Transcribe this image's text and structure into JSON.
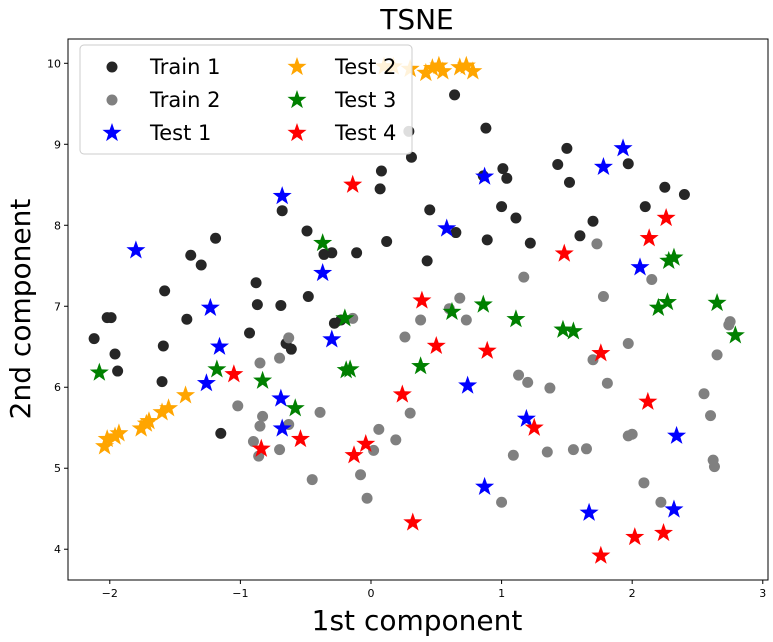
{
  "chart_data": {
    "type": "scatter",
    "title": "TSNE",
    "xlabel": "1st component",
    "ylabel": "2nd component",
    "xlim": [
      -2.32,
      3.04
    ],
    "ylim": [
      3.62,
      10.3
    ],
    "xticks": [
      -2,
      -1,
      0,
      1,
      2,
      3
    ],
    "xtick_labels": [
      "−2",
      "−1",
      "0",
      "1",
      "2",
      "3"
    ],
    "yticks": [
      4,
      5,
      6,
      7,
      8,
      9,
      10
    ],
    "ytick_labels": [
      "4",
      "5",
      "6",
      "7",
      "8",
      "9",
      "10"
    ],
    "grid": false,
    "legend_position": "top-left",
    "series": [
      {
        "name": "Train 1",
        "marker": "circle",
        "color": "#262626",
        "points": [
          [
            -2.12,
            6.6
          ],
          [
            -2.02,
            6.86
          ],
          [
            -1.99,
            6.86
          ],
          [
            -1.96,
            6.41
          ],
          [
            -1.94,
            6.2
          ],
          [
            -1.58,
            7.19
          ],
          [
            -1.59,
            6.51
          ],
          [
            -1.6,
            6.07
          ],
          [
            -1.38,
            7.63
          ],
          [
            -1.3,
            7.51
          ],
          [
            -1.41,
            6.84
          ],
          [
            -1.19,
            7.84
          ],
          [
            -1.15,
            5.43
          ],
          [
            -0.93,
            6.67
          ],
          [
            -0.88,
            7.29
          ],
          [
            -0.87,
            7.02
          ],
          [
            -0.69,
            7.01
          ],
          [
            -0.68,
            8.18
          ],
          [
            -0.65,
            6.54
          ],
          [
            -0.61,
            6.47
          ],
          [
            -0.49,
            7.93
          ],
          [
            -0.48,
            7.12
          ],
          [
            -0.36,
            7.64
          ],
          [
            -0.3,
            7.66
          ],
          [
            -0.28,
            6.79
          ],
          [
            -0.23,
            6.83
          ],
          [
            -0.11,
            7.66
          ],
          [
            0.07,
            8.45
          ],
          [
            0.08,
            8.67
          ],
          [
            0.12,
            7.8
          ],
          [
            0.29,
            9.16
          ],
          [
            0.31,
            8.84
          ],
          [
            0.43,
            7.56
          ],
          [
            0.45,
            8.19
          ],
          [
            0.64,
            9.61
          ],
          [
            0.65,
            7.91
          ],
          [
            0.86,
            8.61
          ],
          [
            0.88,
            9.2
          ],
          [
            0.89,
            7.82
          ],
          [
            1.0,
            8.23
          ],
          [
            1.01,
            8.7
          ],
          [
            1.04,
            8.58
          ],
          [
            1.11,
            8.09
          ],
          [
            1.22,
            7.78
          ],
          [
            1.43,
            8.75
          ],
          [
            1.5,
            8.95
          ],
          [
            1.52,
            8.53
          ],
          [
            1.6,
            7.87
          ],
          [
            1.7,
            8.05
          ],
          [
            1.97,
            8.76
          ],
          [
            2.1,
            8.23
          ],
          [
            2.25,
            8.47
          ],
          [
            2.4,
            8.38
          ]
        ]
      },
      {
        "name": "Train 2",
        "marker": "circle",
        "color": "#808080",
        "points": [
          [
            -1.02,
            5.77
          ],
          [
            -0.9,
            5.33
          ],
          [
            -0.86,
            5.15
          ],
          [
            -0.85,
            6.3
          ],
          [
            -0.85,
            5.52
          ],
          [
            -0.83,
            5.64
          ],
          [
            -0.7,
            6.36
          ],
          [
            -0.7,
            5.23
          ],
          [
            -0.63,
            5.54
          ],
          [
            -0.63,
            6.61
          ],
          [
            -0.45,
            4.86
          ],
          [
            -0.39,
            5.69
          ],
          [
            -0.14,
            6.85
          ],
          [
            -0.08,
            4.92
          ],
          [
            -0.03,
            4.63
          ],
          [
            0.02,
            5.22
          ],
          [
            0.06,
            5.48
          ],
          [
            0.19,
            5.35
          ],
          [
            0.26,
            6.62
          ],
          [
            0.3,
            5.68
          ],
          [
            0.38,
            6.83
          ],
          [
            0.6,
            6.97
          ],
          [
            0.68,
            7.1
          ],
          [
            0.73,
            6.83
          ],
          [
            1.0,
            4.58
          ],
          [
            1.09,
            5.16
          ],
          [
            1.13,
            6.15
          ],
          [
            1.17,
            7.36
          ],
          [
            1.2,
            6.06
          ],
          [
            1.35,
            5.2
          ],
          [
            1.37,
            5.99
          ],
          [
            1.55,
            5.23
          ],
          [
            1.65,
            5.24
          ],
          [
            1.7,
            6.34
          ],
          [
            1.73,
            7.77
          ],
          [
            1.78,
            7.12
          ],
          [
            1.81,
            6.05
          ],
          [
            1.97,
            5.4
          ],
          [
            1.97,
            6.54
          ],
          [
            2.0,
            5.42
          ],
          [
            2.09,
            4.82
          ],
          [
            2.15,
            7.33
          ],
          [
            2.22,
            4.58
          ],
          [
            2.55,
            5.92
          ],
          [
            2.6,
            5.65
          ],
          [
            2.62,
            5.1
          ],
          [
            2.63,
            5.02
          ],
          [
            2.65,
            6.4
          ],
          [
            2.74,
            6.77
          ],
          [
            2.75,
            6.81
          ]
        ]
      },
      {
        "name": "Test 1",
        "marker": "star",
        "color": "#0000ff",
        "points": [
          [
            -1.8,
            7.69
          ],
          [
            -1.26,
            6.05
          ],
          [
            -1.23,
            6.98
          ],
          [
            -1.16,
            6.5
          ],
          [
            -0.68,
            8.36
          ],
          [
            -0.69,
            5.86
          ],
          [
            -0.68,
            5.49
          ],
          [
            -0.37,
            7.41
          ],
          [
            -0.3,
            6.59
          ],
          [
            0.58,
            7.96
          ],
          [
            0.74,
            6.02
          ],
          [
            0.87,
            8.6
          ],
          [
            0.87,
            4.77
          ],
          [
            1.19,
            5.61
          ],
          [
            1.67,
            4.45
          ],
          [
            1.78,
            8.72
          ],
          [
            1.93,
            8.95
          ],
          [
            2.06,
            7.48
          ],
          [
            2.32,
            4.49
          ],
          [
            2.34,
            5.4
          ]
        ]
      },
      {
        "name": "Test 2",
        "marker": "star",
        "color": "#ffa500",
        "points": [
          [
            -2.04,
            5.27
          ],
          [
            -2.02,
            5.36
          ],
          [
            -1.96,
            5.39
          ],
          [
            -1.93,
            5.43
          ],
          [
            -1.76,
            5.49
          ],
          [
            -1.72,
            5.55
          ],
          [
            -1.7,
            5.58
          ],
          [
            -1.6,
            5.69
          ],
          [
            -1.55,
            5.74
          ],
          [
            -1.42,
            5.9
          ],
          [
            0.1,
            9.96
          ],
          [
            0.17,
            9.96
          ],
          [
            0.3,
            9.93
          ],
          [
            0.42,
            9.88
          ],
          [
            0.47,
            9.94
          ],
          [
            0.52,
            9.97
          ],
          [
            0.55,
            9.9
          ],
          [
            0.68,
            9.95
          ],
          [
            0.73,
            9.97
          ],
          [
            0.78,
            9.9
          ]
        ]
      },
      {
        "name": "Test 3",
        "marker": "star",
        "color": "#008000",
        "points": [
          [
            -2.08,
            6.18
          ],
          [
            -1.18,
            6.22
          ],
          [
            -0.83,
            6.08
          ],
          [
            -0.58,
            5.74
          ],
          [
            -0.37,
            7.78
          ],
          [
            -0.2,
            6.85
          ],
          [
            -0.19,
            6.21
          ],
          [
            -0.16,
            6.22
          ],
          [
            0.38,
            6.26
          ],
          [
            0.62,
            6.93
          ],
          [
            0.86,
            7.02
          ],
          [
            1.11,
            6.84
          ],
          [
            1.47,
            6.71
          ],
          [
            1.55,
            6.69
          ],
          [
            2.2,
            6.98
          ],
          [
            2.27,
            7.05
          ],
          [
            2.28,
            7.56
          ],
          [
            2.32,
            7.6
          ],
          [
            2.65,
            7.04
          ],
          [
            2.79,
            6.64
          ]
        ]
      },
      {
        "name": "Test 4",
        "marker": "star",
        "color": "#ff0000",
        "points": [
          [
            -1.05,
            6.16
          ],
          [
            -0.84,
            5.24
          ],
          [
            -0.54,
            5.36
          ],
          [
            -0.14,
            8.5
          ],
          [
            -0.13,
            5.16
          ],
          [
            -0.04,
            5.3
          ],
          [
            0.24,
            5.91
          ],
          [
            0.32,
            4.33
          ],
          [
            0.39,
            7.07
          ],
          [
            0.5,
            6.51
          ],
          [
            0.89,
            6.45
          ],
          [
            1.25,
            5.5
          ],
          [
            1.48,
            7.65
          ],
          [
            1.76,
            6.42
          ],
          [
            1.76,
            3.92
          ],
          [
            2.02,
            4.15
          ],
          [
            2.12,
            5.82
          ],
          [
            2.13,
            7.84
          ],
          [
            2.24,
            4.2
          ],
          [
            2.26,
            8.09
          ]
        ]
      }
    ]
  }
}
